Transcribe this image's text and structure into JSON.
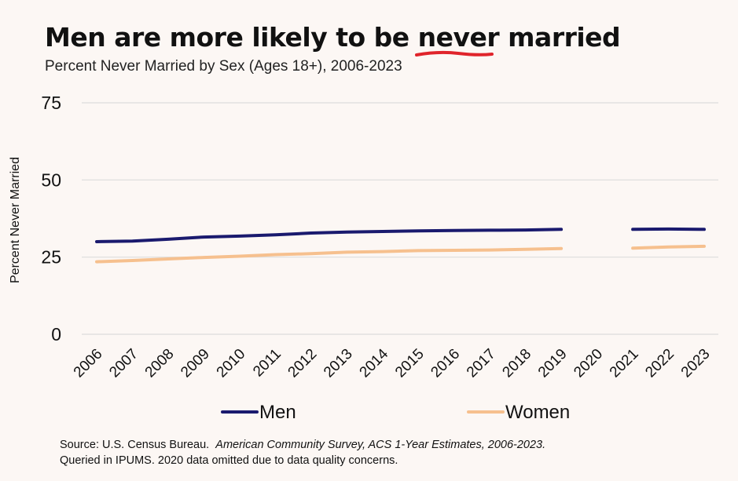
{
  "title": {
    "prefix": "Men are more likely to be ",
    "emphasis": "never",
    "suffix": " married"
  },
  "subtitle": "Percent Never Married by Sex (Ages 18+), 2006-2023",
  "source": {
    "plain1": "Source: U.S. Census Bureau.",
    "italic": "American Community Survey, ACS 1-Year Estimates, 2006-2023.",
    "line2": "Queried in IPUMS. 2020 data omitted due to data quality concerns."
  },
  "colors": {
    "men": "#1a1a6e",
    "women": "#f6c08e",
    "grid": "#dcdcdc",
    "underline": "#e0242b"
  },
  "chart_data": {
    "type": "line",
    "title": "Men are more likely to be never married",
    "subtitle": "Percent Never Married by Sex (Ages 18+), 2006-2023",
    "xlabel": "",
    "ylabel": "Percent Never Married",
    "ylim": [
      0,
      75
    ],
    "yticks": [
      0,
      25,
      50,
      75
    ],
    "grid": true,
    "legend_position": "bottom",
    "categories": [
      "2006",
      "2007",
      "2008",
      "2009",
      "2010",
      "2011",
      "2012",
      "2013",
      "2014",
      "2015",
      "2016",
      "2017",
      "2018",
      "2019",
      "2020",
      "2021",
      "2022",
      "2023"
    ],
    "series": [
      {
        "name": "Men",
        "color": "#1a1a6e",
        "values": [
          30.0,
          30.2,
          30.8,
          31.5,
          31.8,
          32.2,
          32.8,
          33.1,
          33.3,
          33.5,
          33.6,
          33.7,
          33.8,
          34.0,
          null,
          34.0,
          34.1,
          34.0
        ]
      },
      {
        "name": "Women",
        "color": "#f6c08e",
        "values": [
          23.5,
          23.9,
          24.4,
          24.9,
          25.3,
          25.8,
          26.1,
          26.6,
          26.8,
          27.1,
          27.2,
          27.3,
          27.5,
          27.8,
          null,
          27.9,
          28.3,
          28.5
        ]
      }
    ]
  }
}
